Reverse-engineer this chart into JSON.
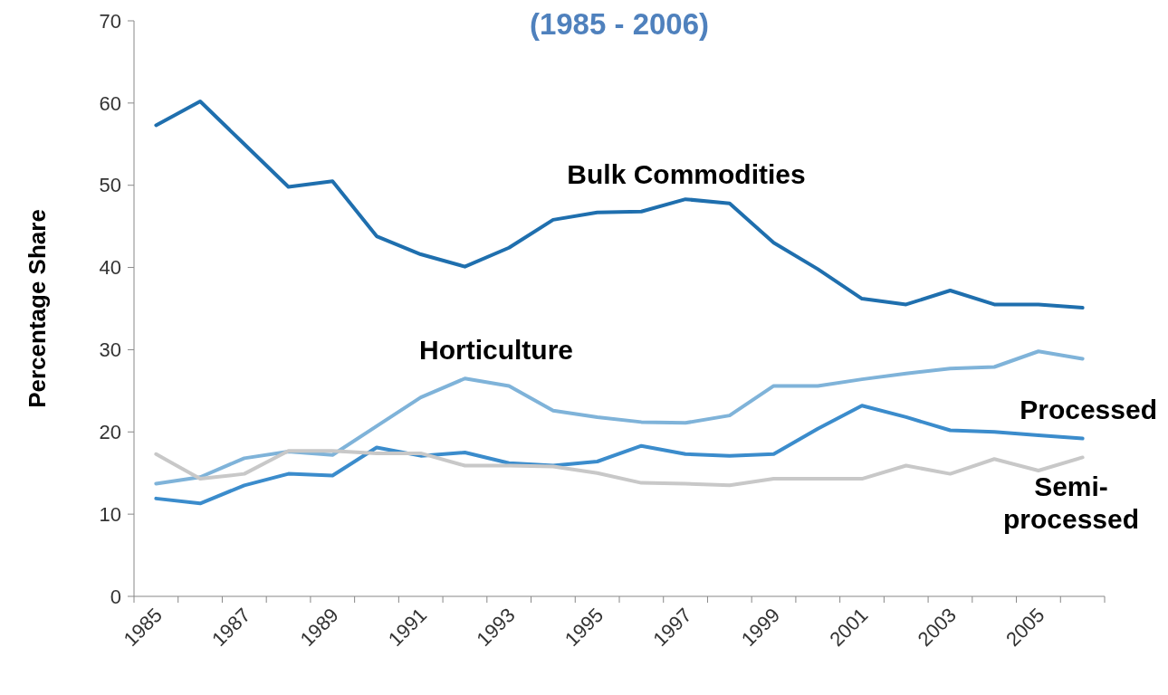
{
  "chart_data": {
    "type": "line",
    "title": "(1985 - 2006)",
    "ylabel": "Percentage Share",
    "categories": [
      "1985",
      null,
      "1987",
      null,
      "1989",
      null,
      "1991",
      null,
      "1993",
      null,
      "1995",
      null,
      "1997",
      null,
      "1999",
      null,
      "2001",
      null,
      "2003",
      null,
      "2005",
      null
    ],
    "series": [
      {
        "name": "Bulk Commodities",
        "color": "#1f6fae",
        "values": [
          57.3,
          60.2,
          55,
          49.8,
          50.5,
          43.8,
          41.6,
          40.1,
          42.4,
          45.8,
          46.7,
          46.8,
          48.3,
          47.8,
          43,
          39.8,
          36.2,
          35.5,
          37.2,
          35.5,
          35.5,
          35.1
        ]
      },
      {
        "name": "Horticulture",
        "color": "#7fb3d9",
        "values": [
          13.7,
          14.5,
          16.8,
          17.6,
          17.2,
          20.7,
          24.2,
          26.5,
          25.6,
          22.6,
          21.8,
          21.2,
          21.1,
          22,
          25.6,
          25.6,
          26.4,
          27.1,
          27.7,
          27.9,
          29.8,
          28.9
        ]
      },
      {
        "name": "Processed",
        "color": "#3b8ccc",
        "values": [
          11.9,
          11.3,
          13.5,
          14.9,
          14.7,
          18.1,
          17.1,
          17.5,
          16.2,
          15.9,
          16.4,
          18.3,
          17.3,
          17.1,
          17.3,
          20.4,
          23.2,
          21.8,
          20.2,
          20,
          19.6,
          19.2
        ]
      },
      {
        "name": "Semi-\nprocessed",
        "color": "#c8c8c8",
        "values": [
          17.3,
          14.3,
          14.9,
          17.7,
          17.7,
          17.4,
          17.4,
          15.9,
          15.9,
          15.8,
          15,
          13.8,
          13.7,
          13.5,
          14.3,
          14.3,
          14.3,
          15.9,
          14.9,
          16.7,
          15.3,
          16.9
        ]
      }
    ],
    "ylim": [
      0,
      70
    ],
    "yticks": [
      0,
      10,
      20,
      30,
      40,
      50,
      60,
      70
    ],
    "grid": false,
    "legend": false,
    "marker": "none",
    "line_style": "solid"
  }
}
